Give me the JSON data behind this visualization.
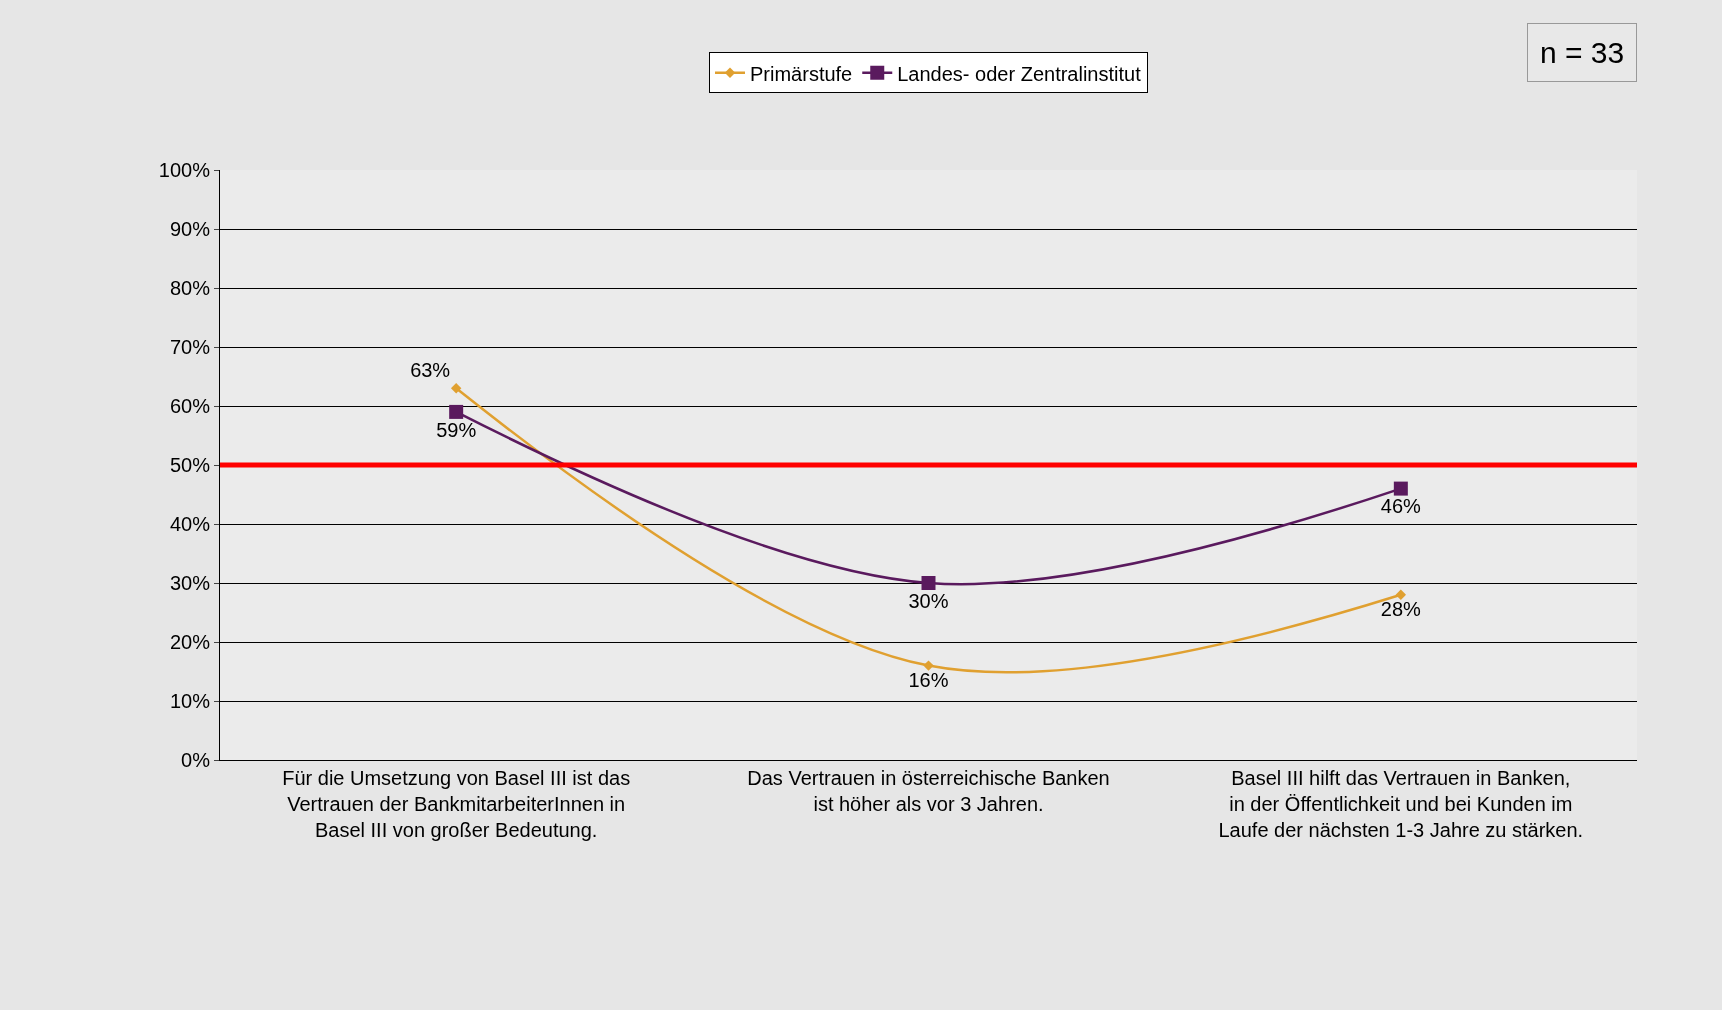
{
  "chart_data": {
    "type": "line",
    "categories": [
      "Für die Umsetzung von Basel III ist das Vertrauen der BankmitarbeiterInnen in Basel III von großer Bedeutung.",
      "Das Vertrauen in österreichische Banken ist höher als vor 3 Jahren.",
      "Basel III hilft das Vertrauen in Banken, in der Öffentlichkeit und bei Kunden im Laufe der nächsten 1-3 Jahre zu stärken."
    ],
    "series": [
      {
        "name": "Primärstufe",
        "color": "#e0a030",
        "marker": "diamond",
        "values": [
          63,
          16,
          28
        ],
        "value_labels": [
          "63%",
          "16%",
          "28%"
        ]
      },
      {
        "name": "Landes- oder Zentralinstitut",
        "color": "#5a1a5e",
        "marker": "square",
        "values": [
          59,
          30,
          46
        ],
        "value_labels": [
          "59%",
          "30%",
          "46%"
        ]
      }
    ],
    "ylim": [
      0,
      100
    ],
    "yticks": [
      {
        "value": 0,
        "label": "0%"
      },
      {
        "value": 10,
        "label": "10%"
      },
      {
        "value": 20,
        "label": "20%"
      },
      {
        "value": 30,
        "label": "30%"
      },
      {
        "value": 40,
        "label": "40%"
      },
      {
        "value": 50,
        "label": "50%"
      },
      {
        "value": 60,
        "label": "60%"
      },
      {
        "value": 70,
        "label": "70%"
      },
      {
        "value": 80,
        "label": "80%"
      },
      {
        "value": 90,
        "label": "90%"
      },
      {
        "value": 100,
        "label": "100%"
      }
    ],
    "ref_lines": [
      {
        "axis": "y",
        "value": 50,
        "color": "#ff0000"
      }
    ],
    "annotations": [
      "n = 33"
    ],
    "grid": "y",
    "legend": "top",
    "line_style": "solid"
  }
}
